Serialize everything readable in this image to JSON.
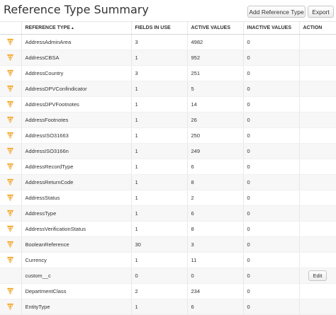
{
  "header": {
    "title": "Reference Type Summary",
    "add_button": "Add Reference Type",
    "export_button": "Export"
  },
  "table": {
    "columns": {
      "reference_type": "REFERENCE TYPE",
      "sort_indicator": "▲",
      "fields_in_use": "FIELDS IN USE",
      "active_values": "ACTIVE VALUES",
      "inactive_values": "INACTIVE VALUES",
      "action": "ACTION"
    },
    "rows": [
      {
        "icon": "v-logo-icon",
        "name": "AddressAdminArea",
        "fields": "3",
        "active": "4982",
        "inactive": "0",
        "action": ""
      },
      {
        "icon": "v-logo-icon",
        "name": "AddressCBSA",
        "fields": "1",
        "active": "952",
        "inactive": "0",
        "action": ""
      },
      {
        "icon": "v-logo-icon",
        "name": "AddressCountry",
        "fields": "3",
        "active": "251",
        "inactive": "0",
        "action": ""
      },
      {
        "icon": "v-logo-icon",
        "name": "AddressDPVConfindicator",
        "fields": "1",
        "active": "5",
        "inactive": "0",
        "action": ""
      },
      {
        "icon": "v-logo-icon",
        "name": "AddressDPVFootnotes",
        "fields": "1",
        "active": "14",
        "inactive": "0",
        "action": ""
      },
      {
        "icon": "v-logo-icon",
        "name": "AddressFootnotes",
        "fields": "1",
        "active": "26",
        "inactive": "0",
        "action": ""
      },
      {
        "icon": "v-logo-icon",
        "name": "AddressISO31663",
        "fields": "1",
        "active": "250",
        "inactive": "0",
        "action": ""
      },
      {
        "icon": "v-logo-icon",
        "name": "AddressISO3166n",
        "fields": "1",
        "active": "249",
        "inactive": "0",
        "action": ""
      },
      {
        "icon": "v-logo-icon",
        "name": "AddressRecordType",
        "fields": "1",
        "active": "6",
        "inactive": "0",
        "action": ""
      },
      {
        "icon": "v-logo-icon",
        "name": "AddressReturnCode",
        "fields": "1",
        "active": "8",
        "inactive": "0",
        "action": ""
      },
      {
        "icon": "v-logo-icon",
        "name": "AddressStatus",
        "fields": "1",
        "active": "2",
        "inactive": "0",
        "action": ""
      },
      {
        "icon": "v-logo-icon",
        "name": "AddressType",
        "fields": "1",
        "active": "6",
        "inactive": "0",
        "action": ""
      },
      {
        "icon": "v-logo-icon",
        "name": "AddressVerificationStatus",
        "fields": "1",
        "active": "8",
        "inactive": "0",
        "action": ""
      },
      {
        "icon": "v-logo-icon",
        "name": "BooleanReference",
        "fields": "30",
        "active": "3",
        "inactive": "0",
        "action": ""
      },
      {
        "icon": "v-logo-icon",
        "name": "Currency",
        "fields": "1",
        "active": "11",
        "inactive": "0",
        "action": ""
      },
      {
        "icon": "",
        "name": "custom__c",
        "fields": "0",
        "active": "0",
        "inactive": "0",
        "action": "Edit"
      },
      {
        "icon": "v-logo-icon",
        "name": "DepartmentClass",
        "fields": "2",
        "active": "234",
        "inactive": "0",
        "action": ""
      },
      {
        "icon": "v-logo-icon",
        "name": "EntityType",
        "fields": "1",
        "active": "6",
        "inactive": "0",
        "action": ""
      }
    ]
  },
  "colors": {
    "icon_orange": "#f5a623",
    "icon_dark": "#e08a0c"
  }
}
